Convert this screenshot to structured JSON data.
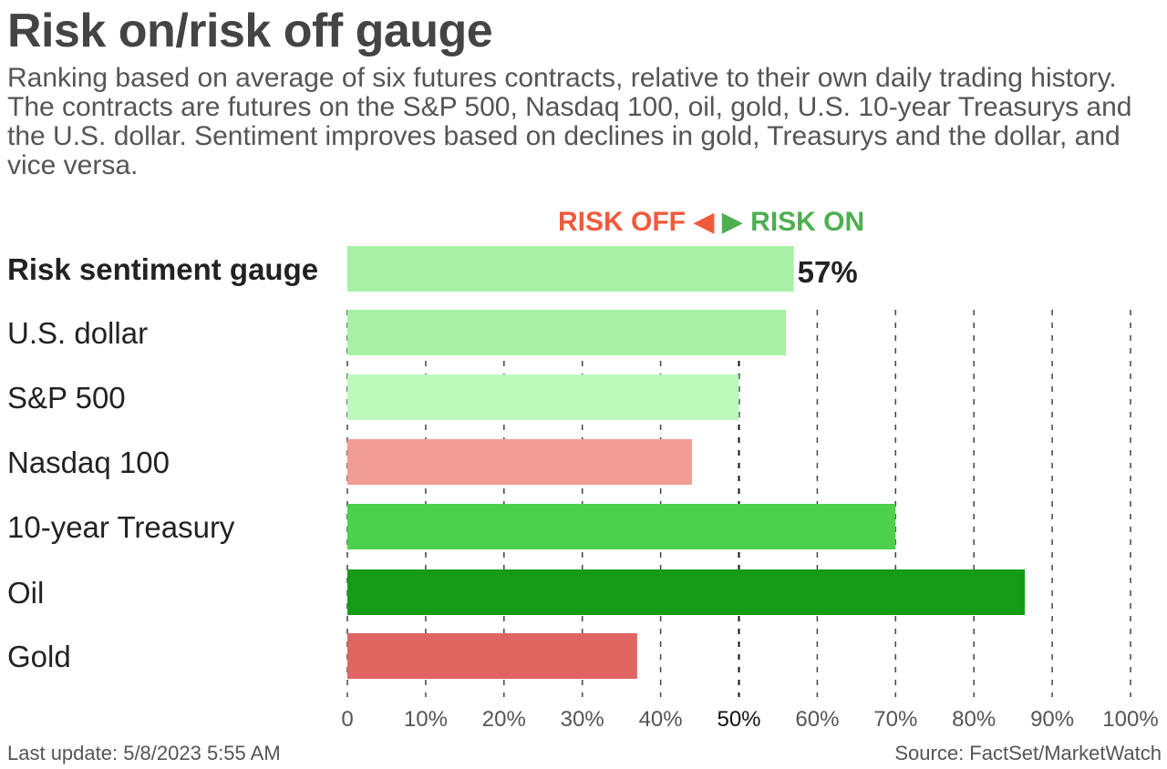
{
  "chart_data": {
    "type": "bar",
    "orientation": "horizontal",
    "title": "Risk on/risk off gauge",
    "subtitle": "Ranking based on average of six futures contracts, relative to their own daily trading history. The contracts are futures on the S&P 500, Nasdaq 100, oil, gold, U.S. 10-year Treasurys and the U.S. dollar. Sentiment improves based on declines in gold, Treasurys and the dollar, and vice versa.",
    "legend": {
      "risk_off": "RISK OFF",
      "risk_on": "RISK ON",
      "risk_off_color": "#f05a3c",
      "risk_on_color": "#4caf50"
    },
    "categories": [
      "Risk sentiment gauge",
      "U.S. dollar",
      "S&P 500",
      "Nasdaq 100",
      "10-year Treasury",
      "Oil",
      "Gold"
    ],
    "values": [
      57,
      56,
      50,
      44,
      70,
      86.5,
      37
    ],
    "colors": [
      "#a8f0a5",
      "#a8f0a5",
      "#bdf9bd",
      "#f09c94",
      "#4cd14c",
      "#169b16",
      "#e06460"
    ],
    "value_label": "57%",
    "xlim": [
      0,
      100
    ],
    "xticks": [
      "0",
      "10%",
      "20%",
      "30%",
      "40%",
      "50%",
      "60%",
      "70%",
      "80%",
      "90%",
      "100%"
    ],
    "grid": true
  },
  "footer": {
    "last_update": "Last update: 5/8/2023 5:55 AM",
    "source": "Source: FactSet/MarketWatch"
  }
}
